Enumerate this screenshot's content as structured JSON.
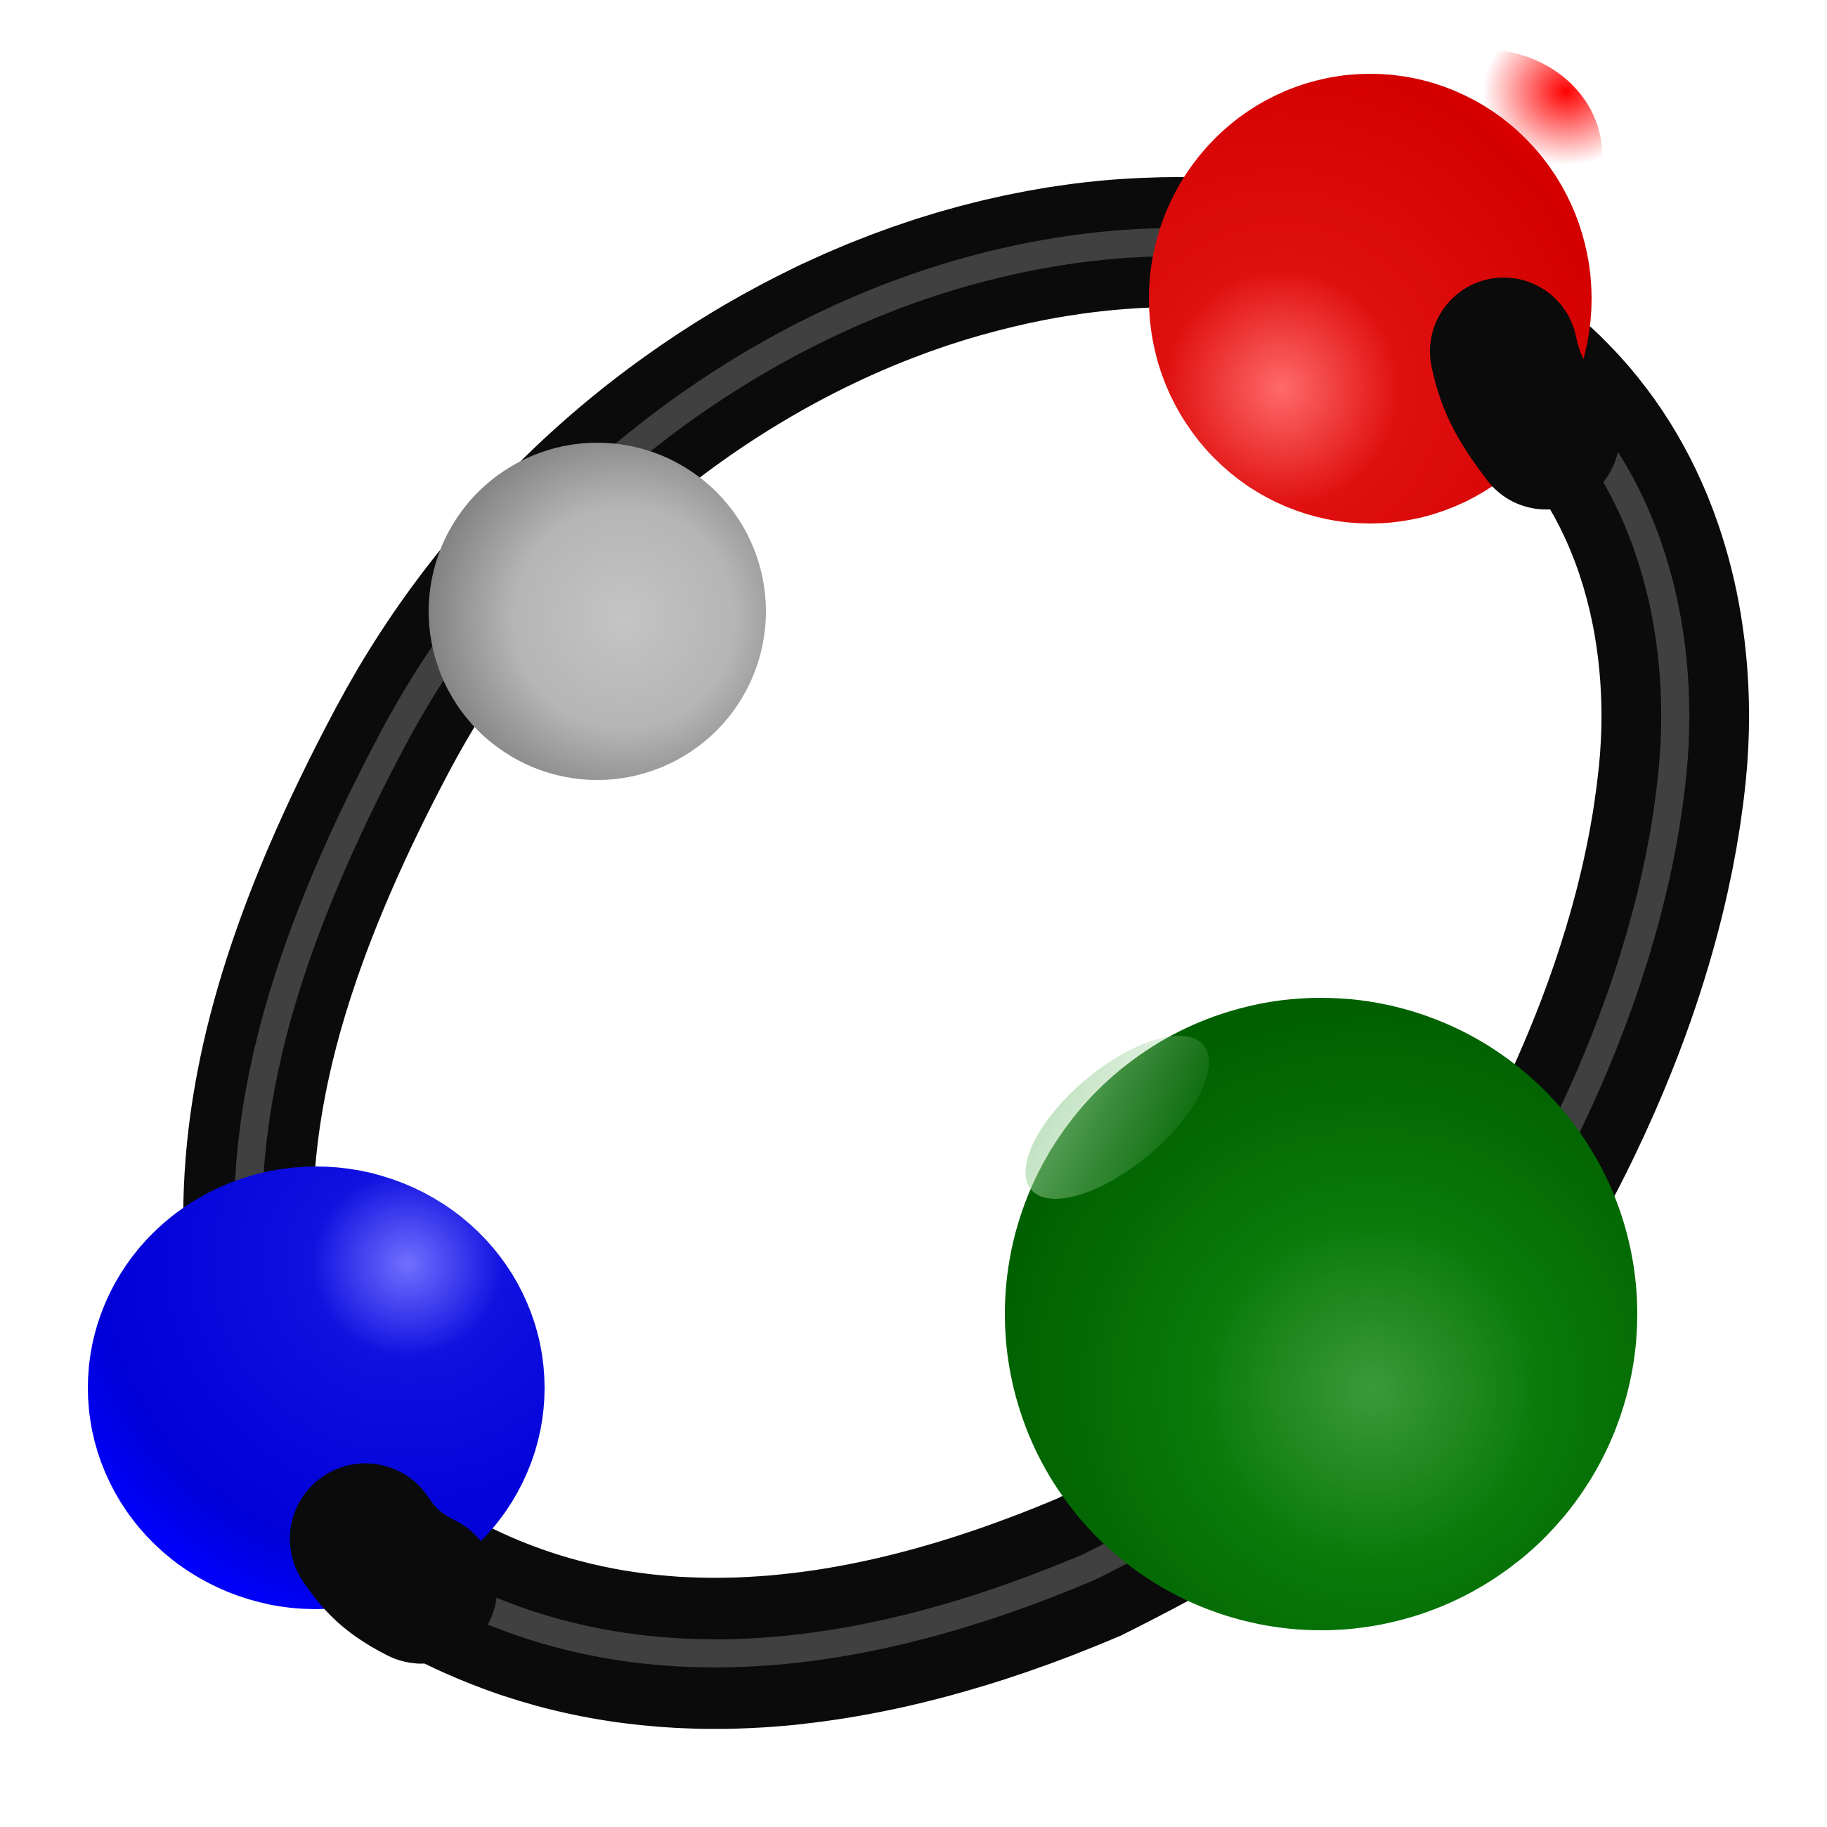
{
  "logo": {
    "icon": "molecule-ring-icon",
    "ring_color": "#0a0a0a",
    "ring_highlight": "#4a4a4a",
    "spheres": [
      {
        "name": "red-sphere",
        "color": "#dd0000",
        "highlight": "#ff6a6a"
      },
      {
        "name": "gray-sphere",
        "color": "#808080",
        "highlight": "#c4c4c4"
      },
      {
        "name": "blue-sphere",
        "color": "#0000dd",
        "highlight": "#7070ff"
      },
      {
        "name": "green-sphere",
        "color": "#006b00",
        "highlight": "#3a9a3a"
      }
    ]
  }
}
